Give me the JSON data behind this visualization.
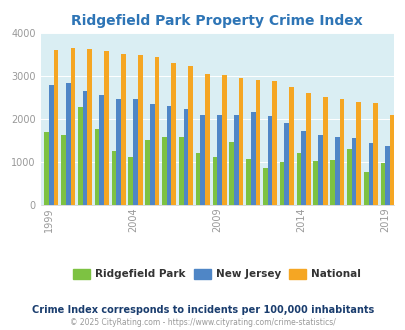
{
  "title": "Ridgefield Park Property Crime Index",
  "years": [
    1999,
    2000,
    2001,
    2002,
    2003,
    2004,
    2005,
    2006,
    2007,
    2008,
    2009,
    2010,
    2011,
    2012,
    2013,
    2014,
    2015,
    2016,
    2017,
    2018,
    2019,
    2020
  ],
  "ridgefield_park": [
    1700,
    1620,
    2280,
    1760,
    1250,
    1100,
    1500,
    1580,
    1580,
    1200,
    1100,
    1450,
    1060,
    860,
    1000,
    1200,
    1010,
    1050,
    1290,
    760,
    980,
    0
  ],
  "new_jersey": [
    2780,
    2840,
    2640,
    2560,
    2460,
    2450,
    2340,
    2300,
    2230,
    2100,
    2080,
    2100,
    2150,
    2070,
    1900,
    1720,
    1630,
    1570,
    1550,
    1430,
    1360,
    0
  ],
  "national": [
    3600,
    3660,
    3620,
    3590,
    3520,
    3480,
    3440,
    3300,
    3240,
    3050,
    3020,
    2950,
    2900,
    2870,
    2730,
    2600,
    2500,
    2460,
    2400,
    2360,
    2100,
    0
  ],
  "color_ridgefield": "#7dc242",
  "color_nj": "#4f86c6",
  "color_national": "#f5a623",
  "bg_color": "#daeef3",
  "ylim": [
    0,
    4000
  ],
  "yticks": [
    0,
    1000,
    2000,
    3000,
    4000
  ],
  "tick_years": [
    1999,
    2004,
    2009,
    2014,
    2019
  ],
  "legend_labels": [
    "Ridgefield Park",
    "New Jersey",
    "National"
  ],
  "note": "Crime Index corresponds to incidents per 100,000 inhabitants",
  "copyright": "© 2025 CityRating.com - https://www.cityrating.com/crime-statistics/",
  "title_color": "#2e75b6",
  "note_color": "#1a3d6e",
  "copyright_color": "#999999",
  "bar_width": 0.28
}
